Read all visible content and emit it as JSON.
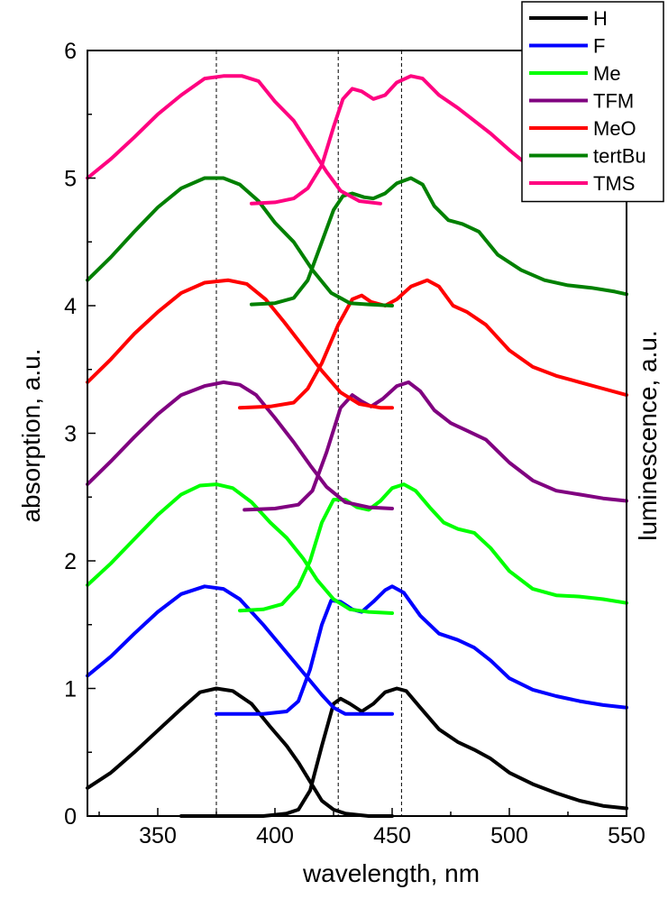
{
  "chart_data": {
    "type": "line",
    "title": "",
    "xlabel": "wavelength, nm",
    "ylabel": "absorption, a.u.",
    "y2label": "luminescence, a.u.",
    "xlim": [
      320,
      550
    ],
    "ylim": [
      0,
      6
    ],
    "x_ticks": [
      350,
      400,
      450,
      500,
      550
    ],
    "y_ticks": [
      0,
      1,
      2,
      3,
      4,
      5,
      6
    ],
    "reference_lines_x": [
      375,
      427,
      454
    ],
    "legend_position": "top-right",
    "grid": false,
    "series": [
      {
        "name": "H",
        "color": "#000000",
        "absorption": [
          [
            320,
            0.22
          ],
          [
            330,
            0.34
          ],
          [
            340,
            0.5
          ],
          [
            350,
            0.67
          ],
          [
            360,
            0.84
          ],
          [
            368,
            0.97
          ],
          [
            375,
            1.0
          ],
          [
            382,
            0.98
          ],
          [
            390,
            0.88
          ],
          [
            398,
            0.7
          ],
          [
            405,
            0.55
          ],
          [
            410,
            0.42
          ],
          [
            415,
            0.27
          ],
          [
            420,
            0.12
          ],
          [
            425,
            0.05
          ],
          [
            430,
            0.02
          ],
          [
            440,
            0.0
          ],
          [
            450,
            0.0
          ]
        ],
        "luminescence": [
          [
            360,
            0.0
          ],
          [
            380,
            0.0
          ],
          [
            395,
            0.0
          ],
          [
            405,
            0.02
          ],
          [
            410,
            0.05
          ],
          [
            415,
            0.2
          ],
          [
            420,
            0.55
          ],
          [
            425,
            0.88
          ],
          [
            428,
            0.92
          ],
          [
            432,
            0.88
          ],
          [
            437,
            0.82
          ],
          [
            442,
            0.88
          ],
          [
            447,
            0.97
          ],
          [
            452,
            1.0
          ],
          [
            456,
            0.98
          ],
          [
            462,
            0.85
          ],
          [
            470,
            0.68
          ],
          [
            478,
            0.58
          ],
          [
            485,
            0.52
          ],
          [
            492,
            0.45
          ],
          [
            500,
            0.34
          ],
          [
            510,
            0.25
          ],
          [
            520,
            0.18
          ],
          [
            530,
            0.12
          ],
          [
            540,
            0.08
          ],
          [
            550,
            0.06
          ]
        ]
      },
      {
        "name": "F",
        "color": "#0000ff",
        "absorption": [
          [
            320,
            1.1
          ],
          [
            330,
            1.25
          ],
          [
            340,
            1.43
          ],
          [
            350,
            1.6
          ],
          [
            360,
            1.74
          ],
          [
            370,
            1.8
          ],
          [
            378,
            1.78
          ],
          [
            385,
            1.7
          ],
          [
            395,
            1.5
          ],
          [
            405,
            1.28
          ],
          [
            415,
            1.06
          ],
          [
            420,
            0.95
          ],
          [
            425,
            0.85
          ],
          [
            430,
            0.8
          ],
          [
            440,
            0.8
          ],
          [
            450,
            0.8
          ]
        ],
        "luminescence": [
          [
            375,
            0.8
          ],
          [
            395,
            0.8
          ],
          [
            405,
            0.82
          ],
          [
            410,
            0.9
          ],
          [
            415,
            1.15
          ],
          [
            420,
            1.5
          ],
          [
            424,
            1.69
          ],
          [
            428,
            1.68
          ],
          [
            433,
            1.62
          ],
          [
            437,
            1.6
          ],
          [
            442,
            1.68
          ],
          [
            447,
            1.77
          ],
          [
            450,
            1.8
          ],
          [
            455,
            1.75
          ],
          [
            462,
            1.57
          ],
          [
            470,
            1.43
          ],
          [
            478,
            1.38
          ],
          [
            485,
            1.32
          ],
          [
            492,
            1.22
          ],
          [
            500,
            1.08
          ],
          [
            510,
            0.99
          ],
          [
            520,
            0.94
          ],
          [
            530,
            0.9
          ],
          [
            540,
            0.87
          ],
          [
            550,
            0.85
          ]
        ]
      },
      {
        "name": "Me",
        "color": "#00ff00",
        "absorption": [
          [
            320,
            1.81
          ],
          [
            330,
            1.98
          ],
          [
            340,
            2.17
          ],
          [
            350,
            2.36
          ],
          [
            360,
            2.52
          ],
          [
            368,
            2.59
          ],
          [
            375,
            2.6
          ],
          [
            382,
            2.57
          ],
          [
            390,
            2.46
          ],
          [
            398,
            2.3
          ],
          [
            405,
            2.18
          ],
          [
            412,
            2.02
          ],
          [
            418,
            1.85
          ],
          [
            425,
            1.7
          ],
          [
            432,
            1.62
          ],
          [
            440,
            1.6
          ],
          [
            450,
            1.59
          ]
        ],
        "luminescence": [
          [
            385,
            1.61
          ],
          [
            395,
            1.62
          ],
          [
            403,
            1.66
          ],
          [
            410,
            1.8
          ],
          [
            415,
            2.0
          ],
          [
            420,
            2.3
          ],
          [
            425,
            2.48
          ],
          [
            430,
            2.48
          ],
          [
            435,
            2.42
          ],
          [
            440,
            2.4
          ],
          [
            445,
            2.47
          ],
          [
            450,
            2.57
          ],
          [
            455,
            2.6
          ],
          [
            460,
            2.55
          ],
          [
            466,
            2.42
          ],
          [
            472,
            2.3
          ],
          [
            478,
            2.25
          ],
          [
            485,
            2.22
          ],
          [
            492,
            2.1
          ],
          [
            500,
            1.92
          ],
          [
            510,
            1.78
          ],
          [
            520,
            1.73
          ],
          [
            530,
            1.72
          ],
          [
            540,
            1.7
          ],
          [
            550,
            1.67
          ]
        ]
      },
      {
        "name": "TFM",
        "color": "#800080",
        "absorption": [
          [
            320,
            2.6
          ],
          [
            330,
            2.78
          ],
          [
            340,
            2.97
          ],
          [
            350,
            3.15
          ],
          [
            360,
            3.3
          ],
          [
            370,
            3.37
          ],
          [
            378,
            3.4
          ],
          [
            385,
            3.38
          ],
          [
            392,
            3.3
          ],
          [
            400,
            3.12
          ],
          [
            408,
            2.93
          ],
          [
            415,
            2.75
          ],
          [
            422,
            2.58
          ],
          [
            430,
            2.46
          ],
          [
            440,
            2.42
          ],
          [
            450,
            2.41
          ]
        ],
        "luminescence": [
          [
            387,
            2.4
          ],
          [
            400,
            2.41
          ],
          [
            410,
            2.44
          ],
          [
            416,
            2.55
          ],
          [
            422,
            2.85
          ],
          [
            428,
            3.2
          ],
          [
            433,
            3.3
          ],
          [
            437,
            3.25
          ],
          [
            441,
            3.21
          ],
          [
            446,
            3.27
          ],
          [
            452,
            3.37
          ],
          [
            457,
            3.4
          ],
          [
            462,
            3.33
          ],
          [
            468,
            3.18
          ],
          [
            475,
            3.08
          ],
          [
            482,
            3.02
          ],
          [
            490,
            2.95
          ],
          [
            500,
            2.77
          ],
          [
            510,
            2.63
          ],
          [
            520,
            2.55
          ],
          [
            530,
            2.52
          ],
          [
            540,
            2.49
          ],
          [
            550,
            2.47
          ]
        ]
      },
      {
        "name": "MeO",
        "color": "#ff0000",
        "absorption": [
          [
            320,
            3.4
          ],
          [
            330,
            3.58
          ],
          [
            340,
            3.78
          ],
          [
            350,
            3.95
          ],
          [
            360,
            4.1
          ],
          [
            370,
            4.18
          ],
          [
            380,
            4.2
          ],
          [
            388,
            4.17
          ],
          [
            396,
            4.05
          ],
          [
            404,
            3.87
          ],
          [
            412,
            3.68
          ],
          [
            420,
            3.49
          ],
          [
            428,
            3.32
          ],
          [
            436,
            3.23
          ],
          [
            445,
            3.2
          ],
          [
            450,
            3.2
          ]
        ],
        "luminescence": [
          [
            385,
            3.2
          ],
          [
            398,
            3.21
          ],
          [
            408,
            3.24
          ],
          [
            414,
            3.35
          ],
          [
            420,
            3.55
          ],
          [
            427,
            3.85
          ],
          [
            433,
            4.05
          ],
          [
            437,
            4.08
          ],
          [
            441,
            4.03
          ],
          [
            447,
            4.0
          ],
          [
            452,
            4.05
          ],
          [
            458,
            4.15
          ],
          [
            465,
            4.2
          ],
          [
            470,
            4.15
          ],
          [
            476,
            4.0
          ],
          [
            482,
            3.95
          ],
          [
            490,
            3.85
          ],
          [
            500,
            3.65
          ],
          [
            510,
            3.52
          ],
          [
            520,
            3.45
          ],
          [
            530,
            3.4
          ],
          [
            540,
            3.35
          ],
          [
            550,
            3.3
          ]
        ]
      },
      {
        "name": "tertBu",
        "color": "#008000",
        "absorption": [
          [
            320,
            4.2
          ],
          [
            330,
            4.38
          ],
          [
            340,
            4.58
          ],
          [
            350,
            4.77
          ],
          [
            360,
            4.92
          ],
          [
            370,
            5.0
          ],
          [
            378,
            5.0
          ],
          [
            385,
            4.95
          ],
          [
            393,
            4.82
          ],
          [
            400,
            4.65
          ],
          [
            408,
            4.5
          ],
          [
            416,
            4.28
          ],
          [
            424,
            4.1
          ],
          [
            432,
            4.02
          ],
          [
            440,
            4.01
          ],
          [
            450,
            4.0
          ]
        ],
        "luminescence": [
          [
            390,
            4.01
          ],
          [
            400,
            4.02
          ],
          [
            408,
            4.06
          ],
          [
            414,
            4.2
          ],
          [
            420,
            4.5
          ],
          [
            425,
            4.75
          ],
          [
            429,
            4.86
          ],
          [
            433,
            4.88
          ],
          [
            438,
            4.85
          ],
          [
            442,
            4.84
          ],
          [
            447,
            4.88
          ],
          [
            452,
            4.96
          ],
          [
            458,
            5.0
          ],
          [
            463,
            4.95
          ],
          [
            468,
            4.78
          ],
          [
            474,
            4.67
          ],
          [
            480,
            4.64
          ],
          [
            487,
            4.58
          ],
          [
            495,
            4.4
          ],
          [
            505,
            4.28
          ],
          [
            515,
            4.2
          ],
          [
            525,
            4.16
          ],
          [
            535,
            4.14
          ],
          [
            545,
            4.11
          ],
          [
            550,
            4.09
          ]
        ]
      },
      {
        "name": "TMS",
        "color": "#ff0080",
        "absorption": [
          [
            320,
            5.0
          ],
          [
            330,
            5.15
          ],
          [
            340,
            5.32
          ],
          [
            350,
            5.5
          ],
          [
            360,
            5.65
          ],
          [
            370,
            5.78
          ],
          [
            378,
            5.8
          ],
          [
            386,
            5.8
          ],
          [
            393,
            5.76
          ],
          [
            400,
            5.6
          ],
          [
            408,
            5.45
          ],
          [
            415,
            5.25
          ],
          [
            422,
            5.05
          ],
          [
            428,
            4.9
          ],
          [
            436,
            4.82
          ],
          [
            445,
            4.8
          ]
        ],
        "luminescence": [
          [
            390,
            4.8
          ],
          [
            400,
            4.81
          ],
          [
            408,
            4.84
          ],
          [
            414,
            4.92
          ],
          [
            420,
            5.1
          ],
          [
            425,
            5.4
          ],
          [
            429,
            5.62
          ],
          [
            433,
            5.7
          ],
          [
            437,
            5.68
          ],
          [
            442,
            5.62
          ],
          [
            447,
            5.65
          ],
          [
            452,
            5.75
          ],
          [
            458,
            5.8
          ],
          [
            463,
            5.78
          ],
          [
            470,
            5.65
          ],
          [
            478,
            5.55
          ],
          [
            485,
            5.45
          ],
          [
            492,
            5.35
          ],
          [
            500,
            5.22
          ],
          [
            508,
            5.1
          ],
          [
            515,
            5.0
          ]
        ]
      }
    ]
  }
}
